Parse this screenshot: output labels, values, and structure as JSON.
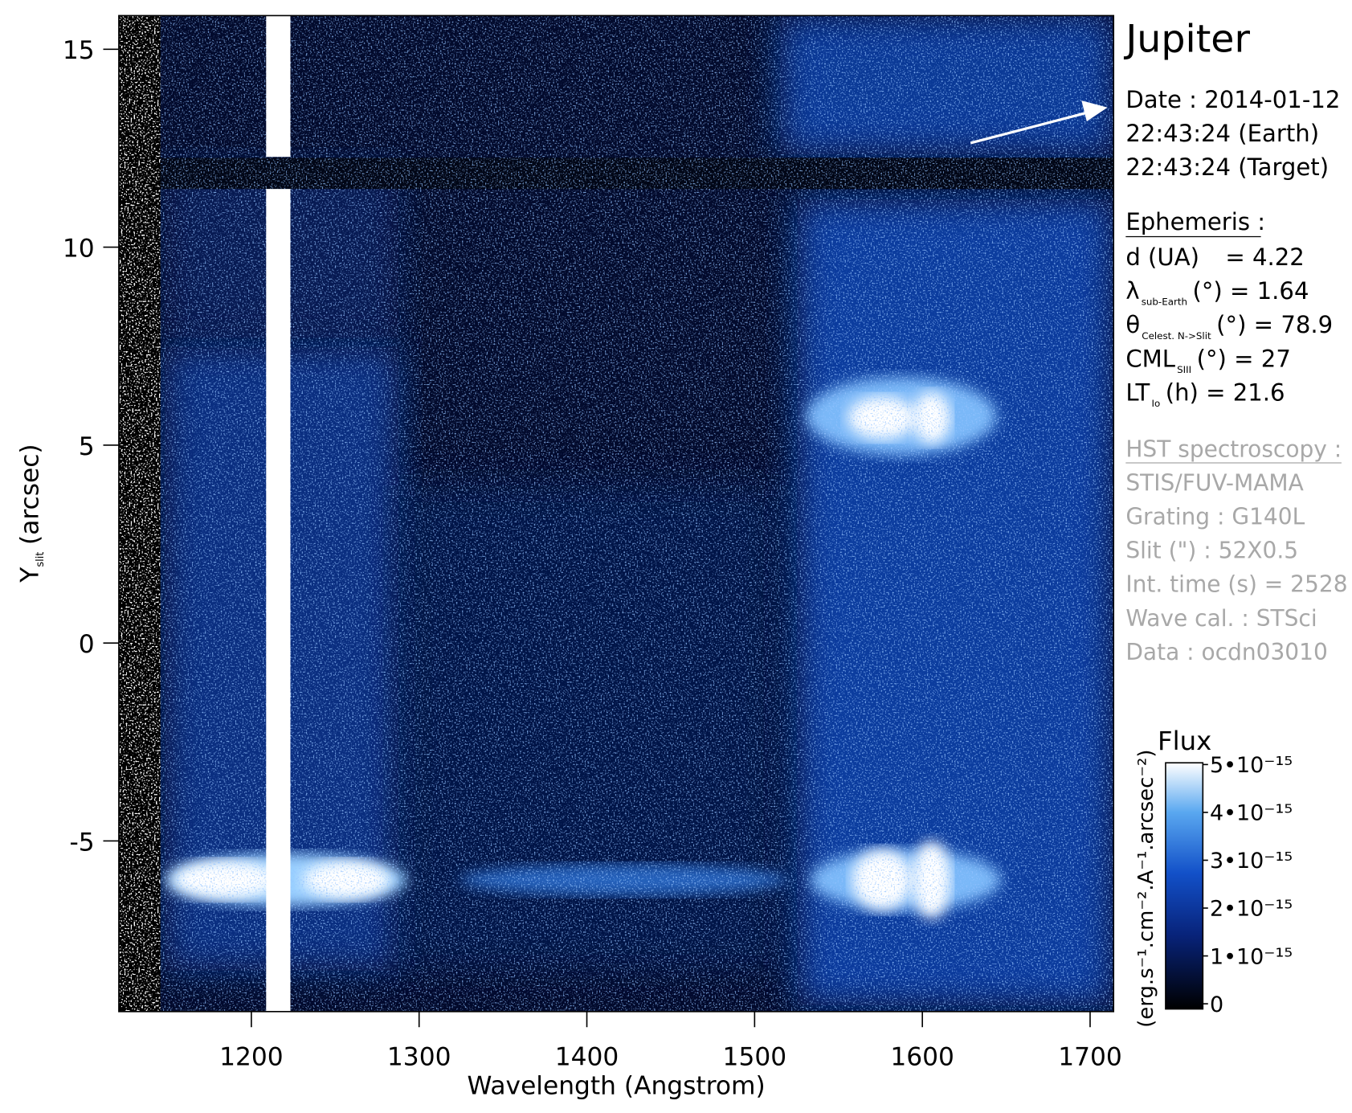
{
  "chart_data": {
    "type": "image",
    "xlabel": "Wavelength (Angstrom)",
    "ylabel": {
      "main": "Y",
      "sub": "slit",
      "rest": "(arcsec)"
    },
    "xlim": [
      1121,
      1714
    ],
    "ylim": [
      -9.31,
      15.85
    ],
    "xticks": [
      1200,
      1300,
      1400,
      1500,
      1600,
      1700
    ],
    "yticks": [
      15,
      10,
      5,
      0,
      -5
    ],
    "colorbar": {
      "title": "Flux",
      "label": "(erg.s⁻¹.cm⁻².A⁻¹.arcsec⁻²)",
      "clim": [
        0,
        5e-15
      ],
      "ticks": [
        {
          "value": 5e-15,
          "label": "5•10⁻¹⁵"
        },
        {
          "value": 4e-15,
          "label": "4•10⁻¹⁵"
        },
        {
          "value": 3e-15,
          "label": "3•10⁻¹⁵"
        },
        {
          "value": 2e-15,
          "label": "2•10⁻¹⁵"
        },
        {
          "value": 1e-15,
          "label": "1•10⁻¹⁵"
        },
        0
      ]
    }
  },
  "panel": {
    "title": "Jupiter",
    "date_lines": [
      "Date : 2014-01-12",
      "22:43:24 (Earth)",
      "22:43:24 (Target)"
    ],
    "ephemeris": {
      "heading": "Ephemeris :",
      "items": [
        {
          "main": "d (UA)",
          "rest": "= 4.22"
        },
        {
          "main": "λ",
          "sub": "sub-Earth",
          "rest": "(°)  = 1.64"
        },
        {
          "main": "θ",
          "sub": "Celest. N->Slit",
          "rest": "(°) = 78.9"
        },
        {
          "main": "CML",
          "sub": "SIII",
          "rest": "(°) = 27"
        },
        {
          "main": "LT",
          "sub": "Io",
          "rest": "(h) = 21.6"
        }
      ]
    },
    "hst": {
      "heading": "HST spectroscopy :",
      "lines": [
        "STIS/FUV-MAMA",
        "Grating : G140L",
        "Slit (\") : 52X0.5",
        "Int. time (s) = 2528",
        "Wave cal. : STSci",
        "Data : ocdn03010"
      ]
    }
  }
}
